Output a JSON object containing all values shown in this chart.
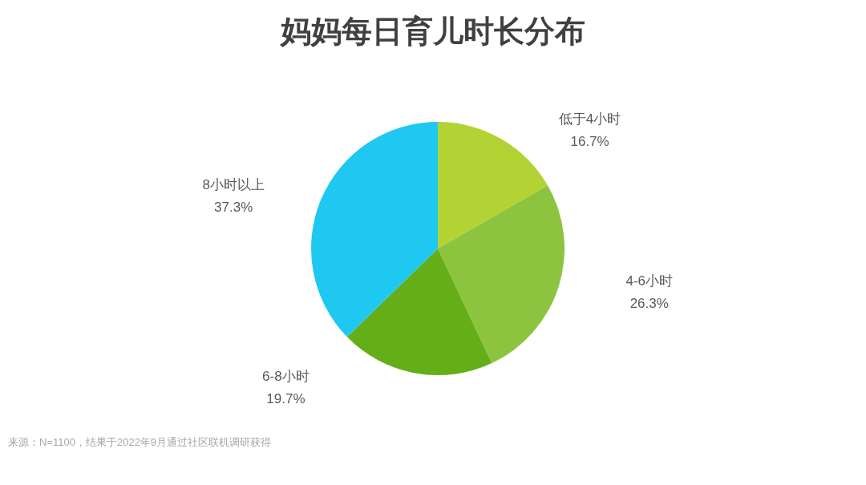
{
  "chart_data": {
    "type": "pie",
    "title": "妈妈每日育儿时长分布",
    "categories": [
      "低于4小时",
      "4-6小时",
      "6-8小时",
      "8小时以上"
    ],
    "values": [
      16.7,
      26.3,
      19.7,
      37.3
    ],
    "value_labels": [
      "16.7%",
      "26.3%",
      "19.7%",
      "37.3%"
    ],
    "colors": [
      "#b3d334",
      "#8cc43f",
      "#64ae18",
      "#1fc8f0"
    ],
    "annotations": [
      "来源：N=1100，结果于2022年9月通过社区联机调研获得"
    ]
  }
}
